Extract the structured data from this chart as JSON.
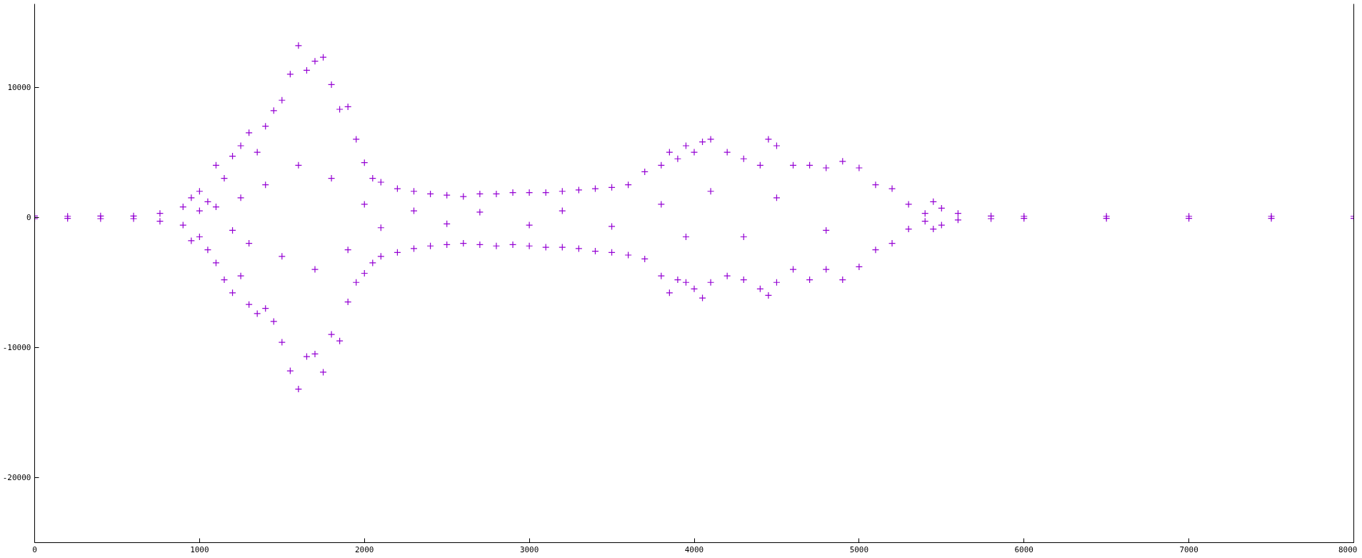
{
  "chart_data": {
    "type": "scatter",
    "marker": "cross",
    "xlim": [
      0,
      8000
    ],
    "xticks": [
      0,
      1000,
      2000,
      3000,
      4000,
      5000,
      6000,
      7000,
      8000
    ],
    "ylim": [
      -25000,
      16400
    ],
    "yticks": [
      -20000,
      -10000,
      0,
      10000
    ],
    "series": [
      {
        "color": "#9400d3",
        "x": [
          0,
          0,
          200,
          200,
          400,
          400,
          600,
          600,
          760,
          760,
          900,
          900,
          950,
          950,
          1000,
          1000,
          1000,
          1050,
          1050,
          1100,
          1100,
          1100,
          1150,
          1150,
          1200,
          1200,
          1200,
          1250,
          1250,
          1250,
          1300,
          1300,
          1300,
          1350,
          1350,
          1400,
          1400,
          1400,
          1450,
          1450,
          1500,
          1500,
          1500,
          1550,
          1550,
          1600,
          1600,
          1600,
          1650,
          1650,
          1700,
          1700,
          1700,
          1750,
          1750,
          1800,
          1800,
          1800,
          1850,
          1850,
          1900,
          1900,
          1900,
          1950,
          1950,
          2000,
          2000,
          2000,
          2050,
          2050,
          2100,
          2100,
          2100,
          2200,
          2200,
          2300,
          2300,
          2300,
          2400,
          2400,
          2500,
          2500,
          2500,
          2600,
          2600,
          2700,
          2700,
          2700,
          2800,
          2800,
          2900,
          2900,
          3000,
          3000,
          3000,
          3100,
          3100,
          3200,
          3200,
          3200,
          3300,
          3300,
          3400,
          3400,
          3500,
          3500,
          3500,
          3600,
          3600,
          3700,
          3700,
          3800,
          3800,
          3800,
          3850,
          3850,
          3900,
          3900,
          3950,
          3950,
          3950,
          4000,
          4000,
          4050,
          4050,
          4100,
          4100,
          4100,
          4200,
          4200,
          4300,
          4300,
          4300,
          4400,
          4400,
          4450,
          4450,
          4500,
          4500,
          4500,
          4600,
          4600,
          4700,
          4700,
          4800,
          4800,
          4800,
          4900,
          4900,
          5000,
          5000,
          5100,
          5100,
          5200,
          5200,
          5300,
          5300,
          5400,
          5400,
          5450,
          5450,
          5500,
          5500,
          5600,
          5600,
          5800,
          5800,
          6000,
          6000,
          6500,
          6500,
          7000,
          7000,
          7500,
          7500,
          8000,
          8000
        ],
        "values": [
          100,
          -100,
          80,
          -80,
          100,
          -100,
          100,
          -100,
          300,
          -300,
          800,
          -600,
          1500,
          -1800,
          2000,
          -1500,
          500,
          1200,
          -2500,
          4000,
          -3500,
          800,
          3000,
          -4800,
          4700,
          -5800,
          -1000,
          5500,
          -4500,
          1500,
          6500,
          -6700,
          -2000,
          5000,
          -7400,
          7000,
          -7000,
          2500,
          8200,
          -8000,
          9000,
          -9600,
          -3000,
          11000,
          -11800,
          13200,
          -13200,
          4000,
          11300,
          -10700,
          12000,
          -10500,
          -4000,
          12300,
          -11900,
          10200,
          -9000,
          3000,
          8300,
          -9500,
          8500,
          -6500,
          -2500,
          6000,
          -5000,
          4200,
          -4300,
          1000,
          3000,
          -3500,
          2700,
          -3000,
          -800,
          2200,
          -2700,
          2000,
          -2400,
          500,
          1800,
          -2200,
          1700,
          -2100,
          -500,
          1600,
          -2000,
          1800,
          -2100,
          400,
          1800,
          -2200,
          1900,
          -2100,
          1900,
          -2200,
          -600,
          1900,
          -2300,
          2000,
          -2300,
          500,
          2100,
          -2400,
          2200,
          -2600,
          2300,
          -2700,
          -700,
          2500,
          -2900,
          3500,
          -3200,
          4000,
          -4500,
          1000,
          5000,
          -5800,
          4500,
          -4800,
          5500,
          -5000,
          -1500,
          5000,
          -5500,
          5800,
          -6200,
          6000,
          -5000,
          2000,
          5000,
          -4500,
          4500,
          -4800,
          -1500,
          4000,
          -5500,
          6000,
          -6000,
          5500,
          -5000,
          1500,
          4000,
          -4000,
          4000,
          -4800,
          3800,
          -4000,
          -1000,
          4300,
          -4800,
          3800,
          -3800,
          2500,
          -2500,
          2200,
          -2000,
          1000,
          -900,
          300,
          -300,
          1200,
          -900,
          700,
          -600,
          300,
          -200,
          100,
          -100,
          80,
          -80,
          80,
          -80,
          80,
          -80,
          80,
          -80,
          80,
          -80
        ]
      }
    ]
  }
}
